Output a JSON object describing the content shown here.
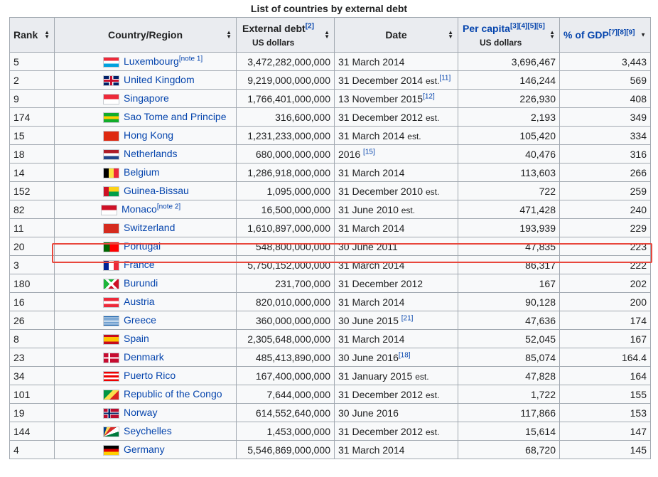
{
  "caption": "List of countries by external debt",
  "headers": {
    "rank": "Rank",
    "country": "Country/Region",
    "debt": "External debt",
    "debt_ref": "[2]",
    "debt_unit": "US dollars",
    "date": "Date",
    "per_capita": "Per capita",
    "per_capita_ref": "[3][4][5][6]",
    "per_capita_unit": "US dollars",
    "gdp": "% of GDP",
    "gdp_ref": "[7][8][9]"
  },
  "highlight_color": "#e8473c",
  "rows": [
    {
      "rank": "5",
      "country": "Luxembourg",
      "country_note": "[note 1]",
      "flag": "luxembourg-flag",
      "debt": "3,472,282,000,000",
      "date": "31 March 2014",
      "est": "",
      "date_ref": "",
      "per_capita": "3,696,467",
      "gdp": "3,443"
    },
    {
      "rank": "2",
      "country": "United Kingdom",
      "country_note": "",
      "flag": "uk-flag",
      "debt": "9,219,000,000,000",
      "date": "31 December 2014",
      "est": "est.",
      "date_ref": "[11]",
      "per_capita": "146,244",
      "gdp": "569"
    },
    {
      "rank": "9",
      "country": "Singapore",
      "country_note": "",
      "flag": "singapore-flag",
      "debt": "1,766,401,000,000",
      "date": "13 November 2015",
      "est": "",
      "date_ref": "[12]",
      "per_capita": "226,930",
      "gdp": "408"
    },
    {
      "rank": "174",
      "country": "Sao Tome and Principe",
      "country_note": "",
      "flag": "sao-tome-flag",
      "debt": "316,600,000",
      "date": "31 December 2012",
      "est": "est.",
      "date_ref": "",
      "per_capita": "2,193",
      "gdp": "349"
    },
    {
      "rank": "15",
      "country": "Hong Kong",
      "country_note": "",
      "flag": "hong-kong-flag",
      "debt": "1,231,233,000,000",
      "date": "31 March 2014",
      "est": "est.",
      "date_ref": "",
      "per_capita": "105,420",
      "gdp": "334"
    },
    {
      "rank": "18",
      "country": "Netherlands",
      "country_note": "",
      "flag": "netherlands-flag",
      "debt": "680,000,000,000",
      "date": "2016 ",
      "est": "",
      "date_ref": "[15]",
      "per_capita": "40,476",
      "gdp": "316"
    },
    {
      "rank": "14",
      "country": "Belgium",
      "country_note": "",
      "flag": "belgium-flag",
      "debt": "1,286,918,000,000",
      "date": "31 March 2014",
      "est": "",
      "date_ref": "",
      "per_capita": "113,603",
      "gdp": "266"
    },
    {
      "rank": "152",
      "country": "Guinea-Bissau",
      "country_note": "",
      "flag": "guinea-bissau-flag",
      "debt": "1,095,000,000",
      "date": "31 December 2010",
      "est": "est.",
      "date_ref": "",
      "per_capita": "722",
      "gdp": "259"
    },
    {
      "rank": "82",
      "country": "Monaco",
      "country_note": "[note 2]",
      "flag": "monaco-flag",
      "debt": "16,500,000,000",
      "date": "31 June 2010",
      "est": "est.",
      "date_ref": "",
      "per_capita": "471,428",
      "gdp": "240"
    },
    {
      "rank": "11",
      "country": "Switzerland",
      "country_note": "",
      "flag": "switzerland-flag",
      "debt": "1,610,897,000,000",
      "date": "31 March 2014",
      "est": "",
      "date_ref": "",
      "per_capita": "193,939",
      "gdp": "229"
    },
    {
      "rank": "20",
      "country": "Portugal",
      "country_note": "",
      "flag": "portugal-flag",
      "debt": "548,800,000,000",
      "date": "30 June 2011",
      "est": "",
      "date_ref": "",
      "per_capita": "47,835",
      "gdp": "223"
    },
    {
      "rank": "3",
      "country": "France",
      "country_note": "",
      "flag": "france-flag",
      "debt": "5,750,152,000,000",
      "date": "31 March 2014",
      "est": "",
      "date_ref": "",
      "per_capita": "86,317",
      "gdp": "222"
    },
    {
      "rank": "180",
      "country": "Burundi",
      "country_note": "",
      "flag": "burundi-flag",
      "debt": "231,700,000",
      "date": "31 December 2012",
      "est": "",
      "date_ref": "",
      "per_capita": "167",
      "gdp": "202"
    },
    {
      "rank": "16",
      "country": "Austria",
      "country_note": "",
      "flag": "austria-flag",
      "debt": "820,010,000,000",
      "date": "31 March 2014",
      "est": "",
      "date_ref": "",
      "per_capita": "90,128",
      "gdp": "200"
    },
    {
      "rank": "26",
      "country": "Greece",
      "country_note": "",
      "flag": "greece-flag",
      "debt": "360,000,000,000",
      "date": "30 June 2015 ",
      "est": "",
      "date_ref": "[21]",
      "per_capita": "47,636",
      "gdp": "174"
    },
    {
      "rank": "8",
      "country": "Spain",
      "country_note": "",
      "flag": "spain-flag",
      "debt": "2,305,648,000,000",
      "date": "31 March 2014",
      "est": "",
      "date_ref": "",
      "per_capita": "52,045",
      "gdp": "167"
    },
    {
      "rank": "23",
      "country": "Denmark",
      "country_note": "",
      "flag": "denmark-flag",
      "debt": "485,413,890,000",
      "date": "30 June 2016",
      "est": "",
      "date_ref": "[18]",
      "per_capita": "85,074",
      "gdp": "164.4"
    },
    {
      "rank": "34",
      "country": "Puerto Rico",
      "country_note": "",
      "flag": "puerto-rico-flag",
      "debt": "167,400,000,000",
      "date": "31 January 2015",
      "est": "est.",
      "date_ref": "",
      "per_capita": "47,828",
      "gdp": "164"
    },
    {
      "rank": "101",
      "country": "Republic of the Congo",
      "country_note": "",
      "flag": "congo-flag",
      "debt": "7,644,000,000",
      "date": "31 December 2012",
      "est": "est.",
      "date_ref": "",
      "per_capita": "1,722",
      "gdp": "155"
    },
    {
      "rank": "19",
      "country": "Norway",
      "country_note": "",
      "flag": "norway-flag",
      "debt": "614,552,640,000",
      "date": "30 June 2016",
      "est": "",
      "date_ref": "",
      "per_capita": "117,866",
      "gdp": "153"
    },
    {
      "rank": "144",
      "country": "Seychelles",
      "country_note": "",
      "flag": "seychelles-flag",
      "debt": "1,453,000,000",
      "date": "31 December 2012",
      "est": "est.",
      "date_ref": "",
      "per_capita": "15,614",
      "gdp": "147"
    },
    {
      "rank": "4",
      "country": "Germany",
      "country_note": "",
      "flag": "germany-flag",
      "debt": "5,546,869,000,000",
      "date": "31 March 2014",
      "est": "",
      "date_ref": "",
      "per_capita": "68,720",
      "gdp": "145"
    }
  ]
}
